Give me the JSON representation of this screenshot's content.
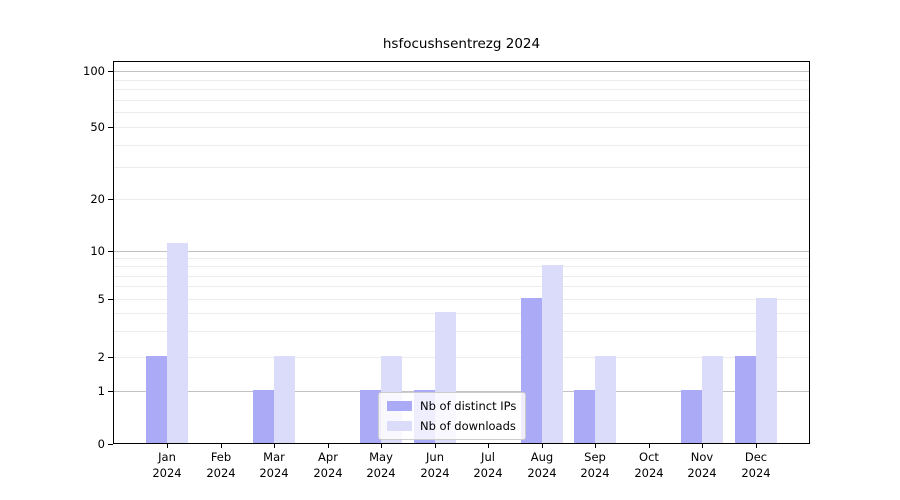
{
  "chart_data": {
    "type": "bar",
    "title": "hsfocushsentrezg 2024",
    "categories": [
      "Jan 2024",
      "Feb 2024",
      "Mar 2024",
      "Apr 2024",
      "May 2024",
      "Jun 2024",
      "Jul 2024",
      "Aug 2024",
      "Sep 2024",
      "Oct 2024",
      "Nov 2024",
      "Dec 2024"
    ],
    "series": [
      {
        "name": "Nb of distinct IPs",
        "color": "#aaaaf7",
        "values": [
          2,
          0,
          1,
          0,
          1,
          1,
          0,
          5,
          1,
          0,
          1,
          2
        ]
      },
      {
        "name": "Nb of downloads",
        "color": "#dbdbfa",
        "values": [
          11,
          0,
          2,
          0,
          2,
          4,
          0,
          8,
          2,
          0,
          2,
          5
        ]
      }
    ],
    "yscale": "symlog",
    "ylim": [
      0,
      140
    ],
    "y_ticks": [
      0,
      1,
      2,
      5,
      10,
      20,
      50,
      100
    ],
    "major_gridlines": [
      1,
      10,
      100
    ],
    "minor_gridlines": [
      2,
      3,
      4,
      5,
      6,
      7,
      8,
      9,
      20,
      30,
      40,
      50,
      60,
      70,
      80,
      90
    ],
    "grid": true,
    "legend_position": "lower center",
    "colors": {
      "major_grid": "#c2c2c2",
      "minor_grid": "#ececec",
      "spine": "#000000",
      "text": "#000000"
    }
  }
}
